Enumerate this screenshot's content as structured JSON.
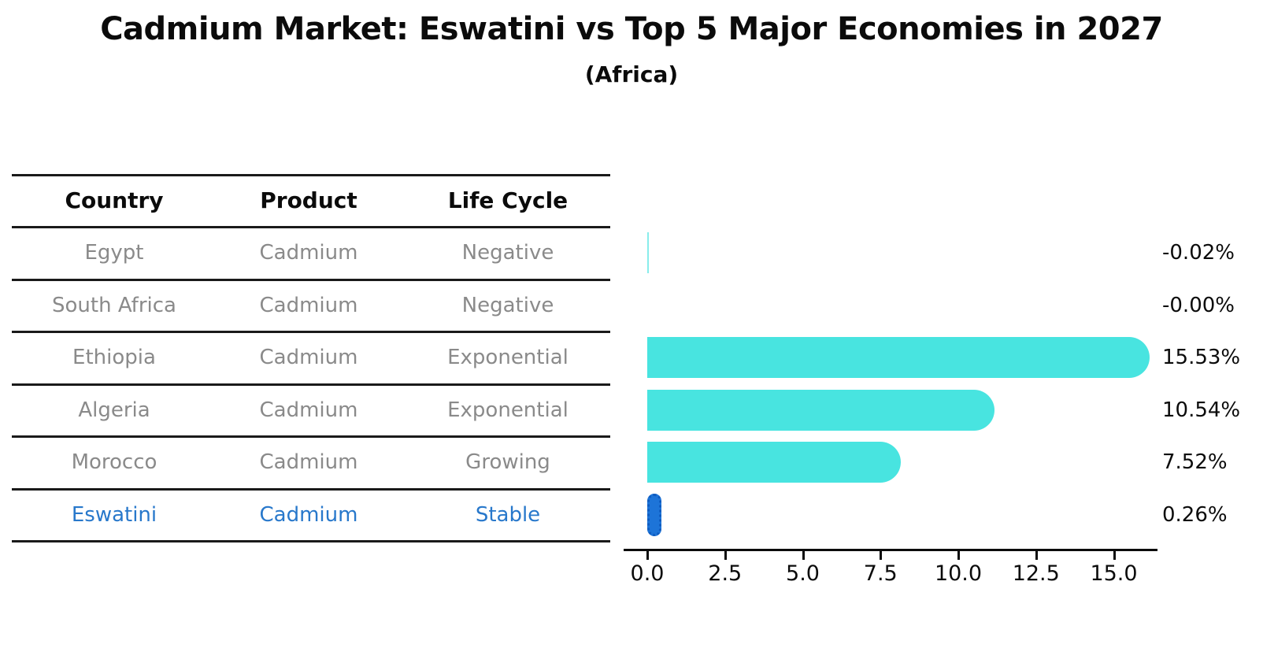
{
  "title": "Cadmium Market: Eswatini vs Top 5 Major Economies in 2027",
  "subtitle": "(Africa)",
  "table": {
    "headers": [
      "Country",
      "Product",
      "Life Cycle"
    ],
    "rows": [
      {
        "country": "Egypt",
        "product": "Cadmium",
        "life_cycle": "Negative"
      },
      {
        "country": "South Africa",
        "product": "Cadmium",
        "life_cycle": "Negative"
      },
      {
        "country": "Ethiopia",
        "product": "Cadmium",
        "life_cycle": "Exponential"
      },
      {
        "country": "Algeria",
        "product": "Cadmium",
        "life_cycle": "Exponential"
      },
      {
        "country": "Morocco",
        "product": "Cadmium",
        "life_cycle": "Growing"
      },
      {
        "country": "Eswatini",
        "product": "Cadmium",
        "life_cycle": "Stable"
      }
    ]
  },
  "chart_data": {
    "type": "bar",
    "orientation": "horizontal",
    "title": "Cadmium Market: Eswatini vs Top 5 Major Economies in 2027",
    "subtitle": "(Africa)",
    "categories": [
      "Egypt",
      "South Africa",
      "Ethiopia",
      "Algeria",
      "Morocco",
      "Eswatini"
    ],
    "values": [
      -0.02,
      -0.0,
      15.53,
      10.54,
      7.52,
      0.26
    ],
    "value_labels": [
      "-0.02%",
      "-0.00%",
      "15.53%",
      "10.54%",
      "7.52%",
      "0.26%"
    ],
    "x_ticks": [
      0.0,
      2.5,
      5.0,
      7.5,
      10.0,
      12.5,
      15.0
    ],
    "x_tick_labels": [
      "0.0",
      "2.5",
      "5.0",
      "7.5",
      "10.0",
      "12.5",
      "15.0"
    ],
    "xlim": [
      0,
      16.4
    ],
    "grid": false,
    "legend": false,
    "highlight_index": 5,
    "highlight_category": "Eswatini"
  },
  "colors": {
    "bar": "#48E4E0",
    "highlight": "#1D74D8",
    "highlight_text": "#2878CB",
    "row_text": "#8A8A8A",
    "heading_text": "#0B0B0B",
    "axis": "#0B0B0B",
    "background": "#FFFFFF"
  }
}
